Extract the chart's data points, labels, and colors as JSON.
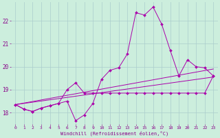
{
  "xlabel": "Windchill (Refroidissement éolien,°C)",
  "background_color": "#cceedd",
  "line_color": "#aa00aa",
  "grid_color": "#aacccc",
  "xlim": [
    -0.5,
    23.5
  ],
  "ylim": [
    17.5,
    22.8
  ],
  "yticks": [
    18,
    19,
    20,
    21,
    22
  ],
  "xticks": [
    0,
    1,
    2,
    3,
    4,
    5,
    6,
    7,
    8,
    9,
    10,
    11,
    12,
    13,
    14,
    15,
    16,
    17,
    18,
    19,
    20,
    21,
    22,
    23
  ],
  "series1_x": [
    0,
    1,
    2,
    3,
    4,
    5,
    6,
    7,
    8,
    9,
    10,
    11,
    12,
    13,
    14,
    15,
    16,
    17,
    18,
    19,
    20,
    21,
    22,
    23
  ],
  "series1_y": [
    18.35,
    18.15,
    18.05,
    18.2,
    18.3,
    18.4,
    18.5,
    17.65,
    17.9,
    18.4,
    19.45,
    19.85,
    19.95,
    20.55,
    22.35,
    22.25,
    22.6,
    21.85,
    20.7,
    19.6,
    20.3,
    20.0,
    19.95,
    19.6
  ],
  "series2_x": [
    0,
    1,
    2,
    3,
    4,
    5,
    6,
    7,
    8,
    9,
    10,
    11,
    12,
    13,
    14,
    15,
    16,
    17,
    18,
    19,
    20,
    21,
    22,
    23
  ],
  "series2_y": [
    18.35,
    18.15,
    18.05,
    18.2,
    18.3,
    18.4,
    19.0,
    19.3,
    18.85,
    18.85,
    18.85,
    18.85,
    18.85,
    18.85,
    18.85,
    18.85,
    18.85,
    18.85,
    18.85,
    18.85,
    18.85,
    18.85,
    18.85,
    19.6
  ],
  "line1_x": [
    0,
    23
  ],
  "line1_y": [
    18.35,
    19.55
  ],
  "line2_x": [
    0,
    23
  ],
  "line2_y": [
    18.35,
    19.9
  ]
}
